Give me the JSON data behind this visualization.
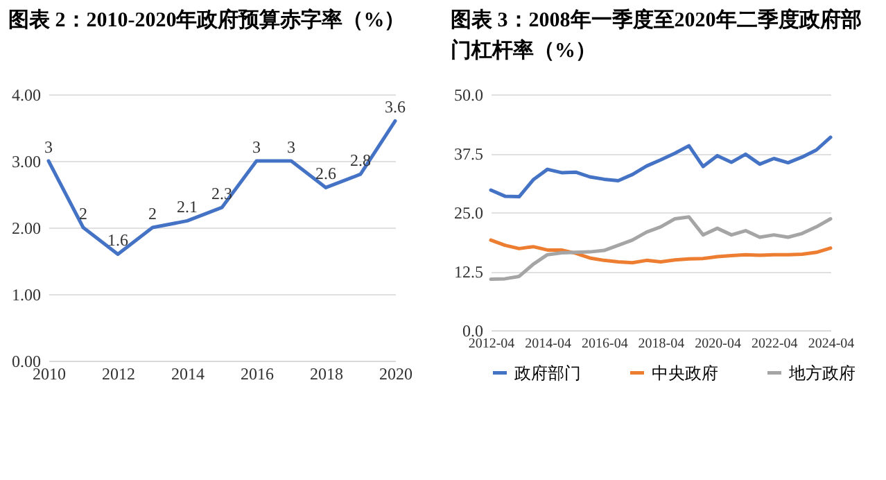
{
  "chart_data": [
    {
      "type": "line",
      "title": "图表 2：2010-2020年政府预算赤字率（%）",
      "x": [
        2010,
        2011,
        2012,
        2013,
        2014,
        2015,
        2016,
        2017,
        2018,
        2019,
        2020
      ],
      "series": [
        {
          "color": "#4472c4",
          "values": [
            3,
            2,
            1.6,
            2,
            2.1,
            2.3,
            3,
            3,
            2.6,
            2.8,
            3.6
          ]
        }
      ],
      "data_labels": true,
      "xlim": [
        2010,
        2020
      ],
      "xticks": [
        2010,
        2012,
        2014,
        2016,
        2018,
        2020
      ],
      "ylim": [
        0,
        4
      ],
      "yticks": [
        {
          "value": 0,
          "label": "0.00"
        },
        {
          "value": 1,
          "label": "1.00"
        },
        {
          "value": 2,
          "label": "2.00"
        },
        {
          "value": 3,
          "label": "3.00"
        },
        {
          "value": 4,
          "label": "4.00"
        }
      ],
      "grid": "y",
      "legend": false
    },
    {
      "type": "line",
      "title": "图表 3：2008年一季度至2020年二季度政府部门杠杆率（%）",
      "x": [
        "2012-04",
        "2012-10",
        "2013-04",
        "2013-10",
        "2014-04",
        "2014-10",
        "2015-04",
        "2015-10",
        "2016-04",
        "2016-10",
        "2017-04",
        "2017-10",
        "2018-04",
        "2018-10",
        "2019-04",
        "2019-10",
        "2020-04",
        "2020-10",
        "2021-04",
        "2021-10",
        "2022-04",
        "2022-10",
        "2023-04",
        "2023-10",
        "2024-04"
      ],
      "series": [
        {
          "name": "政府部门",
          "color": "#4472c4",
          "values": [
            29.7,
            28.4,
            28.3,
            31.9,
            34.1,
            33.4,
            33.5,
            32.5,
            32.0,
            31.7,
            33.0,
            34.8,
            36.1,
            37.5,
            39.1,
            34.7,
            37.0,
            35.6,
            37.3,
            35.2,
            36.4,
            35.5,
            36.7,
            38.2,
            40.9
          ]
        },
        {
          "name": "中央政府",
          "color": "#ed7d31",
          "values": [
            19.1,
            18.0,
            17.3,
            17.7,
            17.0,
            17.0,
            16.3,
            15.3,
            14.8,
            14.5,
            14.3,
            14.8,
            14.5,
            14.9,
            15.1,
            15.2,
            15.6,
            15.8,
            16.0,
            15.9,
            16.0,
            16.0,
            16.1,
            16.5,
            17.4
          ]
        },
        {
          "name": "地方政府",
          "color": "#a5a5a5",
          "values": [
            10.8,
            10.9,
            11.4,
            14.0,
            16.0,
            16.4,
            16.5,
            16.6,
            16.9,
            18.0,
            19.1,
            20.8,
            21.9,
            23.6,
            24.0,
            20.2,
            21.6,
            20.2,
            21.1,
            19.7,
            20.2,
            19.7,
            20.5,
            21.9,
            23.6
          ]
        }
      ],
      "xlim": [
        "2012-04",
        "2024-04"
      ],
      "xticks": [
        "2012-04",
        "2014-04",
        "2016-04",
        "2018-04",
        "2020-04",
        "2022-04",
        "2024-04"
      ],
      "ylim": [
        0,
        50
      ],
      "yticks": [
        {
          "value": 0,
          "label": "0.0"
        },
        {
          "value": 12.5,
          "label": "12.5"
        },
        {
          "value": 25,
          "label": "25.0"
        },
        {
          "value": 37.5,
          "label": "37.5"
        },
        {
          "value": 50,
          "label": "50.0"
        }
      ],
      "grid": "y",
      "legend": "bottom"
    }
  ]
}
